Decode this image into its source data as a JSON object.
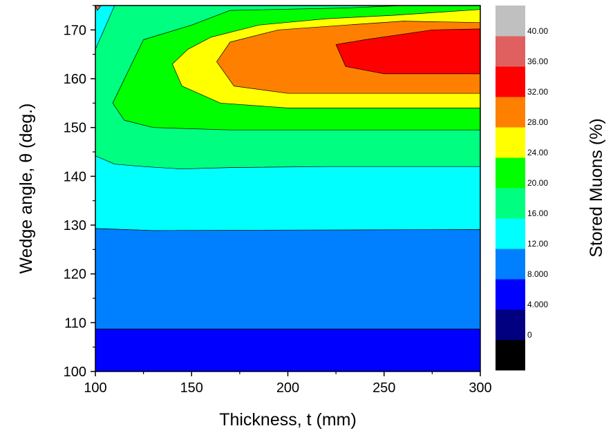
{
  "chart_data": {
    "type": "contour",
    "xlabel": "Thickness, t (mm)",
    "ylabel": "Wedge angle, θ (deg.)",
    "colorbar_label": "Stored Muons (%)",
    "xlim": [
      100,
      300
    ],
    "ylim": [
      100,
      175
    ],
    "x_ticks": [
      "100",
      "150",
      "200",
      "250",
      "300"
    ],
    "y_ticks": [
      "100",
      "110",
      "120",
      "130",
      "140",
      "150",
      "160",
      "170"
    ],
    "levels": [
      {
        "label": "0",
        "min": 0,
        "max": 4,
        "color": "#000000"
      },
      {
        "label": "4.000",
        "min": 4,
        "max": 8,
        "color": "#000080"
      },
      {
        "label": "8.000",
        "min": 8,
        "max": 12,
        "color": "#0000ff"
      },
      {
        "label": "12.00",
        "min": 12,
        "max": 16,
        "color": "#0080ff"
      },
      {
        "label": "16.00",
        "min": 16,
        "max": 20,
        "color": "#00ffff"
      },
      {
        "label": "20.00",
        "min": 20,
        "max": 24,
        "color": "#00ff80"
      },
      {
        "label": "24.00",
        "min": 24,
        "max": 28,
        "color": "#00ff00"
      },
      {
        "label": "28.00",
        "min": 28,
        "max": 32,
        "color": "#ffff00"
      },
      {
        "label": "32.00",
        "min": 32,
        "max": 36,
        "color": "#ff8000"
      },
      {
        "label": "36.00",
        "min": 36,
        "max": 40,
        "color": "#ff0000"
      },
      {
        "label": "40.00",
        "min": 40,
        "max": 44,
        "color": "#e06060"
      },
      {
        "label": "",
        "min": 44,
        "max": 48,
        "color": "#c0c0c0"
      }
    ],
    "regions": [
      {
        "level": 2,
        "boundary": [
          [
            100,
            100
          ],
          [
            300,
            100
          ],
          [
            300,
            108.7
          ],
          [
            100,
            108.7
          ]
        ]
      },
      {
        "level": 3,
        "boundary": [
          [
            100,
            108.7
          ],
          [
            300,
            108.7
          ],
          [
            300,
            129.1
          ],
          [
            130,
            128.9
          ],
          [
            100,
            129.3
          ]
        ]
      },
      {
        "level": 4,
        "boundary": [
          [
            100,
            129.3
          ],
          [
            130,
            128.9
          ],
          [
            300,
            129.1
          ],
          [
            300,
            175
          ],
          [
            100,
            175
          ]
        ]
      },
      {
        "level": 5,
        "boundary": [
          [
            100,
            144.2
          ],
          [
            110,
            142.5
          ],
          [
            125,
            142
          ],
          [
            145,
            141.5
          ],
          [
            170,
            141.8
          ],
          [
            220,
            142
          ],
          [
            300,
            142
          ],
          [
            300,
            175
          ],
          [
            150,
            175
          ],
          [
            110,
            175
          ],
          [
            100,
            166
          ]
        ]
      },
      {
        "level": 6,
        "boundary": [
          [
            109,
            155
          ],
          [
            115,
            151.5
          ],
          [
            130,
            150
          ],
          [
            170,
            149.5
          ],
          [
            300,
            149.5
          ],
          [
            300,
            175
          ],
          [
            260,
            175
          ],
          [
            230,
            174.5
          ],
          [
            170,
            174
          ],
          [
            150,
            171
          ],
          [
            125,
            168
          ]
        ]
      },
      {
        "level": 7,
        "boundary": [
          [
            140,
            163
          ],
          [
            145,
            158.5
          ],
          [
            165,
            155
          ],
          [
            200,
            154
          ],
          [
            300,
            154
          ],
          [
            300,
            174.2
          ],
          [
            255,
            173
          ],
          [
            220,
            172.3
          ],
          [
            185,
            171
          ],
          [
            160,
            168.5
          ],
          [
            148,
            166
          ]
        ]
      },
      {
        "level": 8,
        "boundary": [
          [
            163,
            163.5
          ],
          [
            172,
            158.5
          ],
          [
            200,
            157
          ],
          [
            300,
            157
          ],
          [
            300,
            171.5
          ],
          [
            260,
            171.8
          ],
          [
            230,
            171
          ],
          [
            195,
            170
          ],
          [
            170,
            167.5
          ]
        ]
      },
      {
        "level": 9,
        "boundary": [
          [
            225,
            167
          ],
          [
            230,
            162.5
          ],
          [
            250,
            161
          ],
          [
            300,
            161
          ],
          [
            300,
            170.2
          ],
          [
            275,
            170
          ],
          [
            240,
            168
          ]
        ]
      },
      {
        "level": 10,
        "boundary": [
          [
            100,
            175
          ],
          [
            101,
            174
          ],
          [
            103,
            175
          ]
        ]
      }
    ]
  }
}
